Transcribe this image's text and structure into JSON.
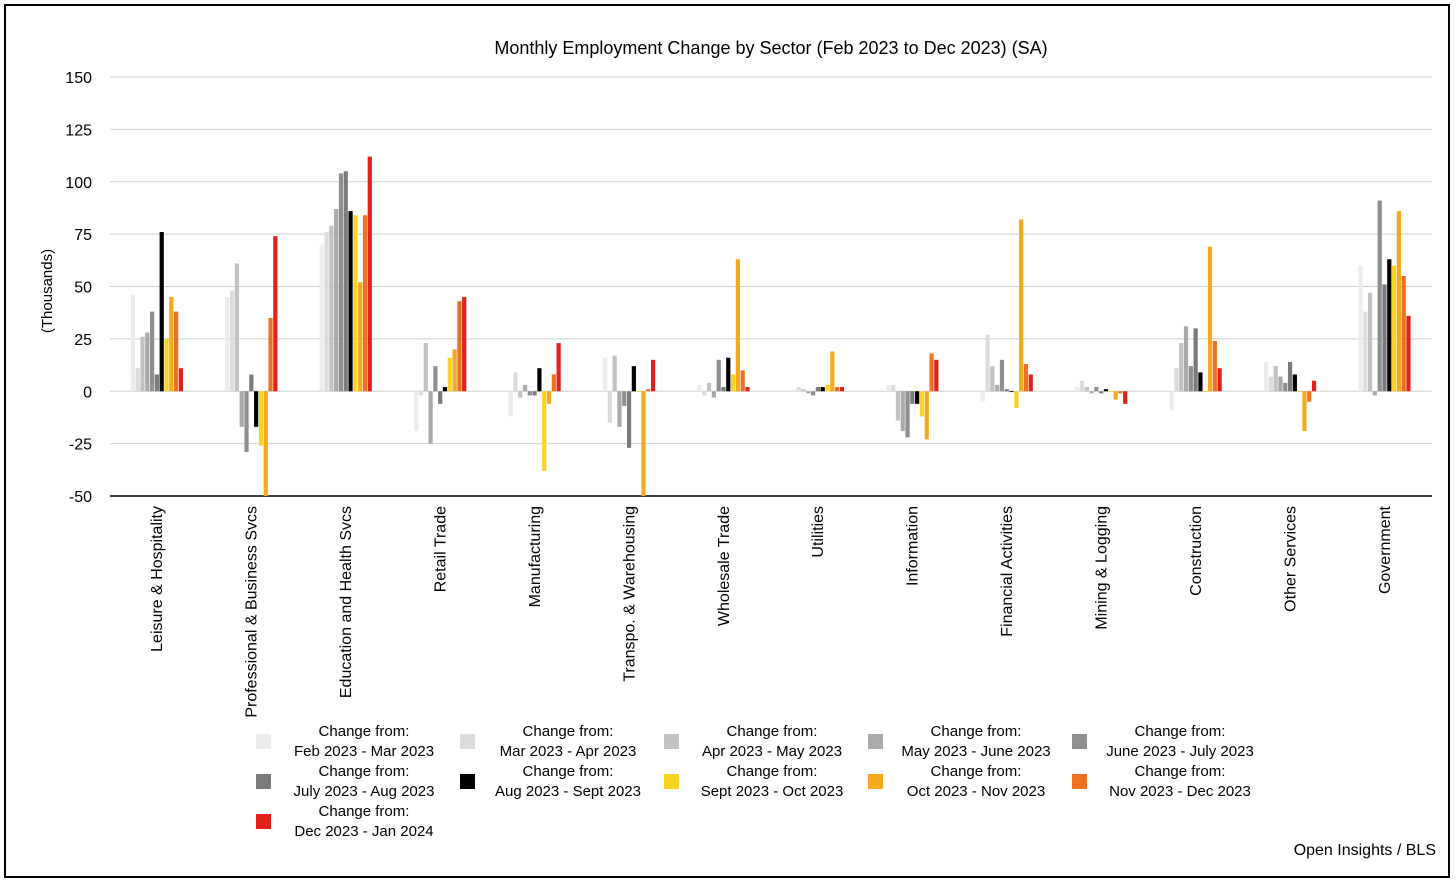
{
  "chart_data": {
    "type": "bar",
    "title": "Monthly Employment Change by Sector (Feb 2023 to Dec 2023) (SA)",
    "ylabel": "(Thousands)",
    "xlabel": "",
    "ylim": [
      -50,
      150
    ],
    "yticks": [
      150,
      125,
      100,
      75,
      50,
      25,
      0,
      -25,
      -50
    ],
    "grid": true,
    "legend_position": "bottom",
    "categories": [
      "Leisure & Hospitality",
      "Professional & Business Svcs",
      "Education and Health Svcs",
      "Retail Trade",
      "Manufacturing",
      "Transpo. & Warehousing",
      "Wholesale Trade",
      "Utilities",
      "Information",
      "Financial Activities",
      "Mining & Logging",
      "Construction",
      "Other Services",
      "Government"
    ],
    "series": [
      {
        "name": "Change from: Feb 2023 - Mar 2023",
        "label_line1": "Change from:",
        "label_line2": "Feb 2023 - Mar 2023",
        "color": "#ececec",
        "values": [
          46,
          45,
          70,
          -19,
          -12,
          16,
          3,
          1,
          3,
          -5,
          2,
          -9,
          14,
          60
        ]
      },
      {
        "name": "Change from: Mar 2023 - Apr 2023",
        "label_line1": "Change from:",
        "label_line2": "Mar 2023 - Apr 2023",
        "color": "#dcdcdc",
        "values": [
          11,
          48,
          76,
          -2,
          9,
          -15,
          -2,
          2,
          3,
          27,
          5,
          11,
          7,
          38
        ]
      },
      {
        "name": "Change from: Apr 2023 - May 2023",
        "label_line1": "Change from:",
        "label_line2": "Apr 2023 - May 2023",
        "color": "#c2c2c2",
        "values": [
          26,
          61,
          79,
          23,
          -3,
          17,
          4,
          1,
          -14,
          12,
          2,
          23,
          12,
          47
        ]
      },
      {
        "name": "Change from: May 2023 - June 2023",
        "label_line1": "Change from:",
        "label_line2": "May 2023 - June 2023",
        "color": "#aaaaaa",
        "values": [
          28,
          -17,
          87,
          -25,
          3,
          -17,
          -3,
          -1,
          -19,
          3,
          -1,
          31,
          7,
          -2
        ]
      },
      {
        "name": "Change from: June 2023 - July 2023",
        "label_line1": "Change from:",
        "label_line2": "June 2023 - July 2023",
        "color": "#8f8f8f",
        "values": [
          38,
          -29,
          104,
          12,
          -2,
          -7,
          15,
          -2,
          -22,
          15,
          2,
          12,
          4,
          91
        ]
      },
      {
        "name": "Change from: July 2023 - Aug 2023",
        "label_line1": "Change from:",
        "label_line2": "July 2023 - Aug 2023",
        "color": "#7b7b7b",
        "values": [
          8,
          8,
          105,
          -6,
          -2,
          -27,
          2,
          2,
          -6,
          1,
          -1,
          30,
          14,
          51
        ]
      },
      {
        "name": "Change from: Aug 2023 - Sept 2023",
        "label_line1": "Change from:",
        "label_line2": "Aug 2023 - Sept 2023",
        "color": "#000000",
        "values": [
          76,
          -17,
          86,
          2,
          11,
          12,
          16,
          2,
          -6,
          0,
          1,
          9,
          8,
          63
        ]
      },
      {
        "name": "Change from: Sept 2023 - Oct 2023",
        "label_line1": "Change from:",
        "label_line2": "Sept 2023 - Oct 2023",
        "color": "#f9d423",
        "values": [
          25,
          -26,
          84,
          16,
          -38,
          0,
          8,
          3,
          -12,
          -8,
          0,
          0,
          0,
          60
        ]
      },
      {
        "name": "Change from: Oct 2023 - Nov 2023",
        "label_line1": "Change from:",
        "label_line2": "Oct 2023 - Nov 2023",
        "color": "#f5a91e",
        "values": [
          45,
          -50,
          52,
          20,
          -6,
          -50,
          63,
          19,
          -23,
          82,
          -4,
          69,
          -19,
          86
        ]
      },
      {
        "name": "Change from: Nov 2023 - Dec 2023",
        "label_line1": "Change from:",
        "label_line2": "Nov 2023 - Dec 2023",
        "color": "#ee7021",
        "values": [
          38,
          35,
          84,
          43,
          8,
          1,
          10,
          2,
          18,
          13,
          -1,
          24,
          -5,
          55
        ]
      },
      {
        "name": "Change from: Dec 2023 - Jan 2024",
        "label_line1": "Change from:",
        "label_line2": "Dec 2023 - Jan 2024",
        "color": "#e3201b",
        "values": [
          11,
          74,
          112,
          45,
          23,
          15,
          2,
          2,
          15,
          8,
          -6,
          11,
          5,
          36
        ]
      }
    ]
  },
  "source": "Open Insights / BLS"
}
